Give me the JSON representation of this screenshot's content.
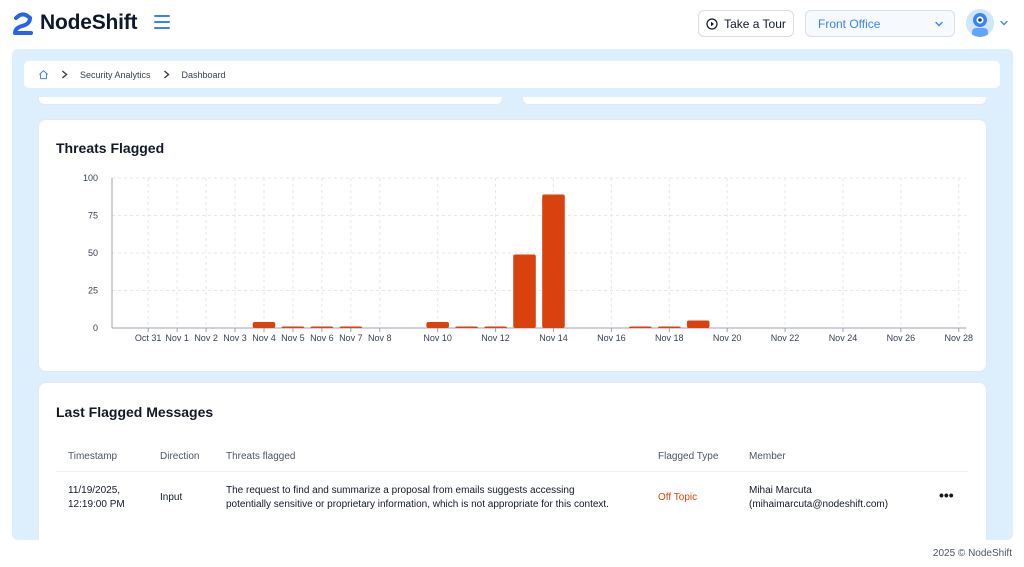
{
  "header": {
    "brand": "NodeShift",
    "tour_label": "Take a Tour",
    "office_selected": "Front Office"
  },
  "breadcrumb": {
    "items": [
      "Security Analytics",
      "Dashboard"
    ]
  },
  "threats_card": {
    "title": "Threats Flagged"
  },
  "chart_data": {
    "type": "bar",
    "title": "Threats Flagged",
    "xlabel": "",
    "ylabel": "",
    "ylim": [
      0,
      100
    ],
    "yticks": [
      0,
      25,
      50,
      75,
      100
    ],
    "grid": true,
    "legend": "none",
    "bar_color": "#d9410f",
    "categories": [
      "Oct 30",
      "Oct 31",
      "Nov 1",
      "Nov 2",
      "Nov 3",
      "Nov 4",
      "Nov 5",
      "Nov 6",
      "Nov 7",
      "Nov 8",
      "Nov 9",
      "Nov 10",
      "Nov 11",
      "Nov 12",
      "Nov 13",
      "Nov 14",
      "Nov 15",
      "Nov 16",
      "Nov 17",
      "Nov 18",
      "Nov 19",
      "Nov 20",
      "Nov 21",
      "Nov 22",
      "Nov 23",
      "Nov 24",
      "Nov 25",
      "Nov 26",
      "Nov 27",
      "Nov 28"
    ],
    "tick_labels": [
      "Oct 31",
      "Nov 1",
      "Nov 2",
      "Nov 3",
      "Nov 4",
      "Nov 5",
      "Nov 6",
      "Nov 7",
      "Nov 8",
      "Nov 10",
      "Nov 12",
      "Nov 14",
      "Nov 16",
      "Nov 18",
      "Nov 20",
      "Nov 22",
      "Nov 24",
      "Nov 26",
      "Nov 28"
    ],
    "values": [
      0,
      0,
      0,
      0,
      0,
      4,
      1,
      1,
      1,
      0,
      0,
      4,
      1,
      1,
      49,
      89,
      0,
      0,
      1,
      1,
      5,
      0,
      0,
      0,
      0,
      0,
      0,
      0,
      0,
      0
    ]
  },
  "messages_card": {
    "title": "Last Flagged Messages",
    "columns": [
      "Timestamp",
      "Direction",
      "Threats flagged",
      "Flagged Type",
      "Member"
    ],
    "rows": [
      {
        "timestamp_date": "11/19/2025,",
        "timestamp_time": "12:19:00 PM",
        "direction": "Input",
        "threat_line1": "The request to find and summarize a proposal from emails suggests accessing",
        "threat_line2": "potentially sensitive or proprietary information, which is not appropriate for this context.",
        "flagged_type": "Off Topic",
        "member_name": "Mihai Marcuta",
        "member_email": "(mihaimarcuta@nodeshift.com)",
        "actions_label": "•••"
      }
    ]
  },
  "footer": {
    "text": "2025 © NodeShift"
  }
}
